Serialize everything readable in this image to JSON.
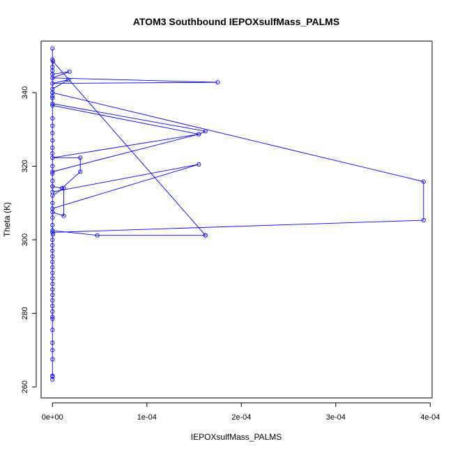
{
  "chart_data": {
    "type": "line",
    "title": "ATOM3 Southbound IEPOXsulfMass_PALMS",
    "xlabel": "IEPOXsulfMass_PALMS",
    "ylabel": "Theta (K)",
    "xlim": [
      -1.2e-05,
      0.000402
    ],
    "ylim": [
      257,
      354
    ],
    "x_ticks": [
      0,
      0.0001,
      0.0002,
      0.0003,
      0.0004
    ],
    "x_tick_labels": [
      "0e+00",
      "1e-04",
      "2e-04",
      "3e-04",
      "4e-04"
    ],
    "y_ticks": [
      260,
      280,
      300,
      320,
      340
    ],
    "y_tick_labels": [
      "260",
      "280",
      "300",
      "320",
      "340"
    ],
    "grid": false,
    "series": [
      {
        "color": "#0000ff",
        "markers": "open-circle",
        "points": [
          [
            0,
            262
          ],
          [
            0,
            262.8
          ],
          [
            0,
            263
          ],
          [
            0,
            267.5
          ],
          [
            0,
            270
          ],
          [
            0,
            272
          ],
          [
            0,
            275.5
          ],
          [
            0,
            278.5
          ],
          [
            0,
            279
          ],
          [
            0,
            280.5
          ],
          [
            0,
            282
          ],
          [
            0,
            283.5
          ],
          [
            0,
            285
          ],
          [
            0,
            286.5
          ],
          [
            0,
            288
          ],
          [
            0,
            289.5
          ],
          [
            0,
            291
          ],
          [
            0,
            292.5
          ],
          [
            0,
            294
          ],
          [
            0,
            295.5
          ],
          [
            0,
            297
          ],
          [
            0,
            298.5
          ],
          [
            0,
            300
          ],
          [
            5e-07,
            301.5
          ],
          [
            0,
            302.5
          ],
          [
            4.75e-05,
            301.2
          ],
          [
            0.000162,
            301.2
          ],
          [
            0.000162,
            301.2
          ],
          [
            5e-07,
            348.5
          ],
          [
            0,
            347
          ],
          [
            0,
            345
          ],
          [
            1.8e-05,
            345.7
          ],
          [
            0,
            344
          ],
          [
            0.000175,
            342.8
          ],
          [
            0,
            342.5
          ],
          [
            1.7e-05,
            343.5
          ],
          [
            0,
            341
          ],
          [
            0,
            340
          ],
          [
            0,
            338.5
          ],
          [
            0,
            337
          ],
          [
            0.000162,
            329.5
          ],
          [
            0.000155,
            328.7
          ],
          [
            0,
            322.3
          ],
          [
            2.95e-05,
            322.3
          ],
          [
            2.95e-05,
            318.5
          ],
          [
            1e-05,
            314
          ],
          [
            0,
            314.5
          ],
          [
            0,
            313
          ],
          [
            0.000155,
            320.5
          ],
          [
            0,
            308.5
          ],
          [
            0,
            307.5
          ],
          [
            1.2e-05,
            306.5
          ],
          [
            1.2e-05,
            314
          ],
          [
            0,
            312
          ],
          [
            0,
            310
          ],
          [
            0,
            306
          ],
          [
            0,
            304
          ],
          [
            0,
            302
          ],
          [
            0.000393,
            305.3
          ],
          [
            0.000393,
            315.8
          ],
          [
            0,
            340
          ],
          [
            0,
            333
          ],
          [
            0,
            331
          ],
          [
            0,
            329
          ],
          [
            0,
            327
          ],
          [
            0,
            325
          ],
          [
            0,
            323.5
          ],
          [
            0,
            320
          ],
          [
            0,
            318
          ],
          [
            0,
            316
          ],
          [
            0,
            314.5
          ],
          [
            0,
            318.5
          ],
          [
            0.000155,
            328.7
          ],
          [
            0,
            336.5
          ],
          [
            0,
            339
          ],
          [
            0,
            346
          ],
          [
            0,
            349
          ],
          [
            0,
            352
          ]
        ]
      }
    ]
  }
}
